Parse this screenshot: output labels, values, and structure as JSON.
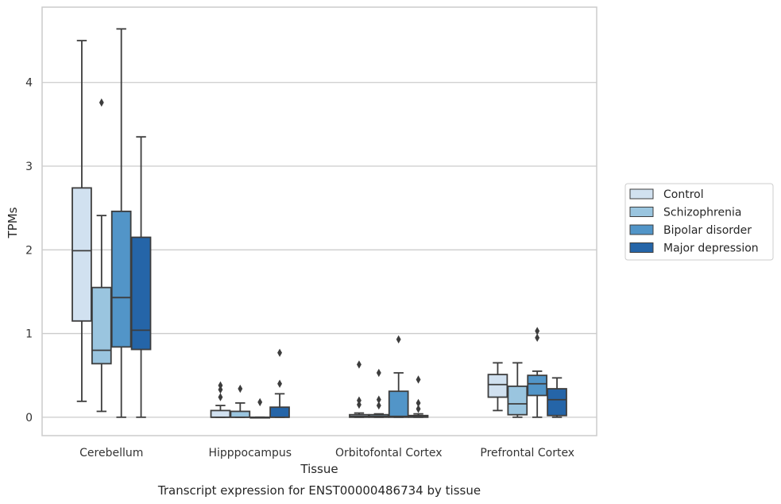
{
  "chart_data": {
    "type": "boxplot",
    "title": "Transcript expression for ENST00000486734 by tissue",
    "xlabel": "Tissue",
    "ylabel": "TPMs",
    "ylim": [
      -0.22,
      4.9
    ],
    "yticks": [
      0,
      1,
      2,
      3,
      4
    ],
    "grid": "horizontal",
    "legend_position": "right",
    "categories": [
      "Cerebellum",
      "Hipppocampus",
      "Orbitofontal Cortex",
      "Prefrontal Cortex"
    ],
    "series": [
      {
        "name": "Control",
        "color": "#d1e1f0",
        "boxes": [
          {
            "whislo": 0.19,
            "q1": 1.15,
            "med": 1.99,
            "q3": 2.74,
            "whishi": 4.5,
            "fliers": []
          },
          {
            "whislo": 0.0,
            "q1": 0.0,
            "med": 0.0,
            "q3": 0.08,
            "whishi": 0.14,
            "fliers": [
              0.24,
              0.33,
              0.38
            ]
          },
          {
            "whislo": 0.0,
            "q1": 0.0,
            "med": 0.01,
            "q3": 0.03,
            "whishi": 0.05,
            "fliers": [
              0.15,
              0.2,
              0.63
            ]
          },
          {
            "whislo": 0.08,
            "q1": 0.24,
            "med": 0.39,
            "q3": 0.51,
            "whishi": 0.65,
            "fliers": []
          }
        ]
      },
      {
        "name": "Schizophrenia",
        "color": "#9ac5df",
        "boxes": [
          {
            "whislo": 0.07,
            "q1": 0.64,
            "med": 0.8,
            "q3": 1.55,
            "whishi": 2.41,
            "fliers": [
              3.76
            ]
          },
          {
            "whislo": 0.0,
            "q1": 0.0,
            "med": 0.0,
            "q3": 0.07,
            "whishi": 0.17,
            "fliers": [
              0.34
            ]
          },
          {
            "whislo": 0.0,
            "q1": 0.0,
            "med": 0.01,
            "q3": 0.03,
            "whishi": 0.04,
            "fliers": [
              0.14,
              0.21,
              0.53
            ]
          },
          {
            "whislo": 0.0,
            "q1": 0.03,
            "med": 0.16,
            "q3": 0.37,
            "whishi": 0.65,
            "fliers": []
          }
        ]
      },
      {
        "name": "Bipolar disorder",
        "color": "#5295c8",
        "boxes": [
          {
            "whislo": 0.0,
            "q1": 0.84,
            "med": 1.43,
            "q3": 2.46,
            "whishi": 4.64,
            "fliers": []
          },
          {
            "whislo": 0.0,
            "q1": 0.0,
            "med": 0.0,
            "q3": 0.0,
            "whishi": 0.0,
            "fliers": [
              0.18
            ]
          },
          {
            "whislo": 0.0,
            "q1": 0.0,
            "med": 0.01,
            "q3": 0.31,
            "whishi": 0.53,
            "fliers": [
              0.93
            ]
          },
          {
            "whislo": 0.0,
            "q1": 0.26,
            "med": 0.4,
            "q3": 0.5,
            "whishi": 0.55,
            "fliers": [
              0.95,
              1.03
            ]
          }
        ]
      },
      {
        "name": "Major depression",
        "color": "#2565a8",
        "boxes": [
          {
            "whislo": 0.0,
            "q1": 0.81,
            "med": 1.04,
            "q3": 2.15,
            "whishi": 3.35,
            "fliers": []
          },
          {
            "whislo": 0.0,
            "q1": 0.0,
            "med": 0.0,
            "q3": 0.12,
            "whishi": 0.28,
            "fliers": [
              0.4,
              0.77
            ]
          },
          {
            "whislo": 0.0,
            "q1": 0.0,
            "med": 0.01,
            "q3": 0.02,
            "whishi": 0.04,
            "fliers": [
              0.1,
              0.17,
              0.45
            ]
          },
          {
            "whislo": 0.0,
            "q1": 0.02,
            "med": 0.21,
            "q3": 0.34,
            "whishi": 0.47,
            "fliers": []
          }
        ]
      }
    ]
  }
}
